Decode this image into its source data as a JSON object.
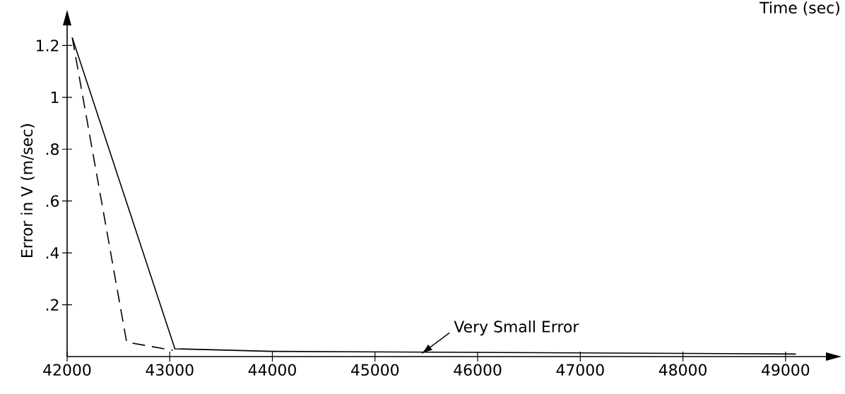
{
  "chart_data": {
    "type": "line",
    "xlabel": "Time (sec)",
    "ylabel": "Error in V (m/sec)",
    "xlim": [
      42000,
      49400
    ],
    "ylim": [
      0,
      1.28
    ],
    "xticks": [
      42000,
      43000,
      44000,
      45000,
      46000,
      47000,
      48000,
      49000
    ],
    "yticks": [
      {
        "value": 0.2,
        "label": ".2"
      },
      {
        "value": 0.4,
        "label": ".4"
      },
      {
        "value": 0.6,
        "label": ".6"
      },
      {
        "value": 0.8,
        "label": ".8"
      },
      1,
      {
        "value": 1.2,
        "label": "1.2"
      }
    ],
    "series": [
      {
        "color": "#000000",
        "line_style": "solid",
        "x": [
          42050,
          43050,
          44000,
          49100
        ],
        "values": [
          1.23,
          0.03,
          0.02,
          0.01
        ]
      },
      {
        "color": "#000000",
        "line_style": "dashed",
        "x": [
          42050,
          42580,
          43030
        ],
        "values": [
          1.23,
          0.056,
          0.024
        ]
      }
    ],
    "annotations": [
      {
        "text": "Very Small Error",
        "x": 45450,
        "y": 0.01
      }
    ]
  }
}
